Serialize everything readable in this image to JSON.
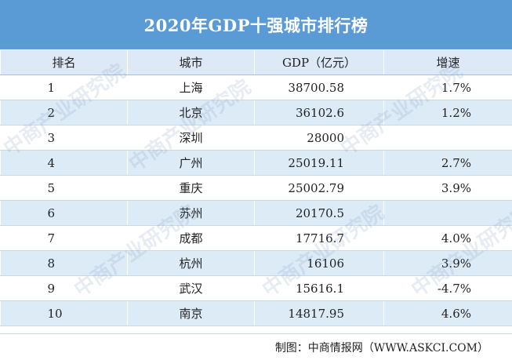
{
  "title": "2020年GDP十强城市排行榜",
  "columns": [
    "排名",
    "城市",
    "GDP（亿元）",
    "增速"
  ],
  "rows": [
    {
      "rank": "1",
      "city": "上海",
      "gdp": "38700.58",
      "growth": "1.7%"
    },
    {
      "rank": "2",
      "city": "北京",
      "gdp": "36102.6",
      "growth": "1.2%"
    },
    {
      "rank": "3",
      "city": "深圳",
      "gdp": "28000",
      "growth": ""
    },
    {
      "rank": "4",
      "city": "广州",
      "gdp": "25019.11",
      "growth": "2.7%"
    },
    {
      "rank": "5",
      "city": "重庆",
      "gdp": "25002.79",
      "growth": "3.9%"
    },
    {
      "rank": "6",
      "city": "苏州",
      "gdp": "20170.5",
      "growth": ""
    },
    {
      "rank": "7",
      "city": "成都",
      "gdp": "17716.7",
      "growth": "4.0%"
    },
    {
      "rank": "8",
      "city": "杭州",
      "gdp": "16106",
      "growth": "3.9%"
    },
    {
      "rank": "9",
      "city": "武汉",
      "gdp": "15616.1",
      "growth": "-4.7%"
    },
    {
      "rank": "10",
      "city": "南京",
      "gdp": "14817.95",
      "growth": "4.6%"
    }
  ],
  "footer": "制图：中商情报网（WWW.ASKCI.COM）",
  "watermark": "中商产业研究院"
}
